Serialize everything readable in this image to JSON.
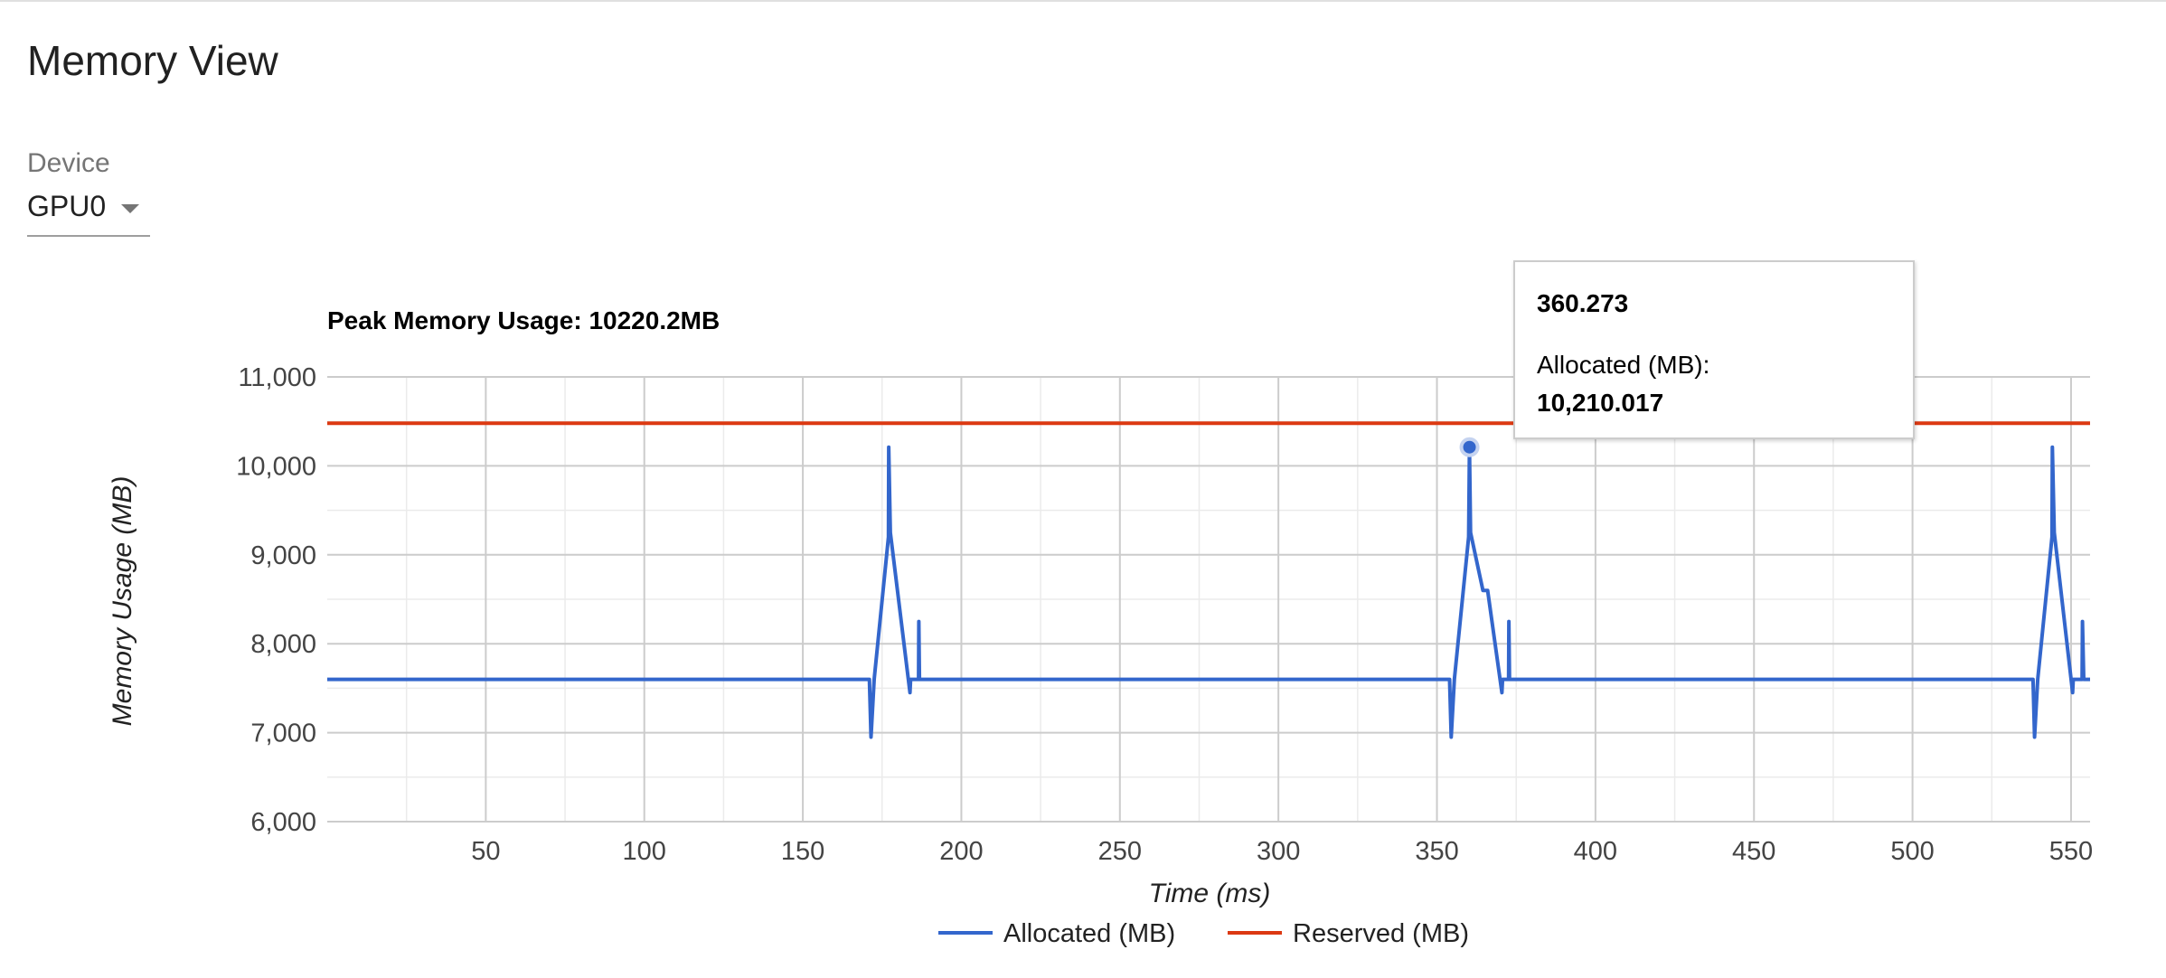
{
  "page": {
    "title": "Memory View",
    "device_label": "Device",
    "device_value": "GPU0"
  },
  "tooltip": {
    "x_value": "360.273",
    "series_label": "Allocated (MB):",
    "y_value": "10,210.017"
  },
  "colors": {
    "allocated": "#3366cc",
    "reserved": "#dc3912"
  },
  "chart_data": {
    "type": "line",
    "title": "Peak Memory Usage: 10220.2MB",
    "xlabel": "Time (ms)",
    "ylabel": "Memory Usage (MB)",
    "xlim": [
      0,
      556
    ],
    "ylim": [
      6000,
      11000
    ],
    "x_ticks": [
      50,
      100,
      150,
      200,
      250,
      300,
      350,
      400,
      450,
      500,
      550
    ],
    "x_tick_labels": [
      "50",
      "100",
      "150",
      "200",
      "250",
      "300",
      "350",
      "400",
      "450",
      "500",
      "550"
    ],
    "y_ticks": [
      6000,
      7000,
      8000,
      9000,
      10000,
      11000
    ],
    "y_tick_labels": [
      "6,000",
      "7,000",
      "8,000",
      "9,000",
      "10,000",
      "11,000"
    ],
    "grid": true,
    "legend_position": "bottom",
    "series": [
      {
        "name": "Allocated (MB)",
        "x": [
          0,
          171,
          171.5,
          172.5,
          177,
          177.1,
          177.6,
          183.8,
          184,
          186.5,
          186.6,
          186.8,
          354,
          354.5,
          355.5,
          360,
          360.273,
          360.6,
          364.5,
          366,
          370.5,
          370.7,
          372.6,
          372.7,
          372.9,
          538,
          538.5,
          539.5,
          544,
          544.1,
          544.7,
          550.5,
          550.7,
          553.5,
          553.6,
          554,
          556
        ],
        "y": [
          7600,
          7600,
          6950,
          7600,
          9200,
          10210,
          9250,
          7450,
          7600,
          7600,
          8250,
          7600,
          7600,
          6950,
          7600,
          9200,
          10210,
          9250,
          8600,
          8600,
          7450,
          7600,
          7600,
          8250,
          7600,
          7600,
          6950,
          7600,
          9200,
          10210,
          9250,
          7450,
          7600,
          7600,
          8250,
          7600,
          7600
        ]
      },
      {
        "name": "Reserved (MB)",
        "x": [
          0,
          556
        ],
        "y": [
          10480,
          10480
        ]
      }
    ],
    "highlight_point": {
      "series": "Allocated (MB)",
      "x": 360.273,
      "y": 10210.017
    }
  }
}
